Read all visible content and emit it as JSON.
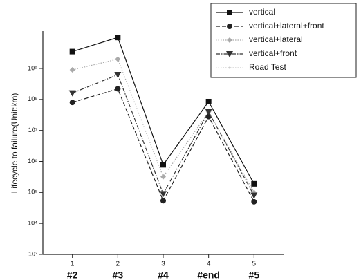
{
  "chart_data": {
    "type": "line",
    "y_label": "Lifecycle to failure(Unit:km)",
    "x": [
      1,
      2,
      3,
      4,
      5
    ],
    "categories": [
      "#2",
      "#3",
      "#4",
      "#end",
      "#5"
    ],
    "xlim": [
      0.35,
      5.65
    ],
    "xticks": [
      1,
      2,
      3,
      4,
      5
    ],
    "log_y": true,
    "ylim": [
      1000,
      16000000000
    ],
    "yticks": [
      {
        "value": 1000,
        "label": "10³"
      },
      {
        "value": 10000,
        "label": "10⁴"
      },
      {
        "value": 100000,
        "label": "10⁵"
      },
      {
        "value": 1000000,
        "label": "10⁶"
      },
      {
        "value": 10000000,
        "label": "10⁷"
      },
      {
        "value": 100000000,
        "label": "10⁸"
      },
      {
        "value": 1000000000,
        "label": "10⁹"
      }
    ],
    "legend": "top-right",
    "series": [
      {
        "name": "vertical",
        "color": "#111111",
        "marker": "square",
        "dash": "solid",
        "values": [
          3500000000,
          10000000000,
          780000,
          85000000,
          190000
        ]
      },
      {
        "name": "vertical+lateral+front",
        "color": "#222222",
        "marker": "circle",
        "dash": "dashed",
        "values": [
          80000000,
          220000000,
          54000,
          28000000,
          50000
        ]
      },
      {
        "name": "vertical+lateral",
        "color": "#aaaaaa",
        "marker": "diamond",
        "dash": "dotted",
        "values": [
          900000000,
          2000000000,
          320000,
          40000000,
          100000
        ]
      },
      {
        "name": "vertical+front",
        "color": "#333333",
        "marker": "triangle-down",
        "dash": "dashdot",
        "values": [
          160000000,
          630000000,
          90000,
          40000000,
          80000
        ]
      },
      {
        "name": "Road Test",
        "color": "#cccccc",
        "marker": "dot",
        "dash": "dotted",
        "values": [
          null,
          null,
          null,
          null,
          null
        ]
      }
    ]
  }
}
